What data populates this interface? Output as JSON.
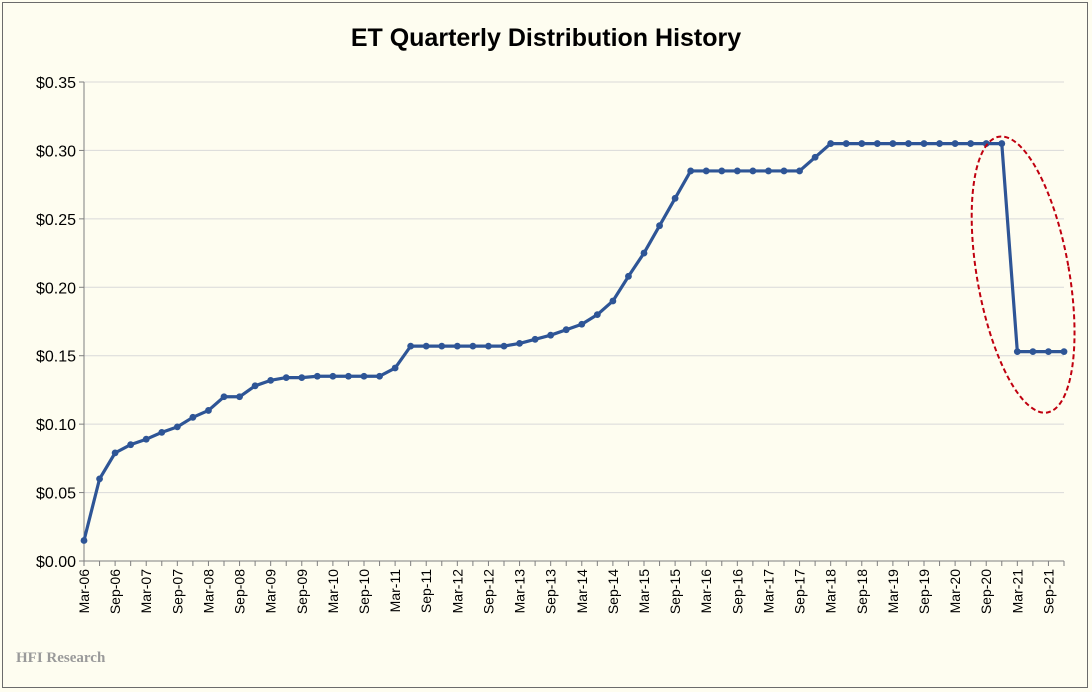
{
  "chart_data": {
    "type": "line",
    "title": "ET Quarterly Distribution History",
    "xlabel": "",
    "ylabel": "",
    "ylim": [
      0,
      0.35
    ],
    "yticks": [
      "$0.00",
      "$0.05",
      "$0.10",
      "$0.15",
      "$0.20",
      "$0.25",
      "$0.30",
      "$0.35"
    ],
    "grid": "horizontal",
    "x_tick_labels": [
      "Mar-06",
      "Sep-06",
      "Mar-07",
      "Sep-07",
      "Mar-08",
      "Sep-08",
      "Mar-09",
      "Sep-09",
      "Mar-10",
      "Sep-10",
      "Mar-11",
      "Sep-11",
      "Mar-12",
      "Sep-12",
      "Mar-13",
      "Sep-13",
      "Mar-14",
      "Sep-14",
      "Mar-15",
      "Sep-15",
      "Mar-16",
      "Sep-16",
      "Mar-17",
      "Sep-17",
      "Mar-18",
      "Sep-18",
      "Mar-19",
      "Sep-19",
      "Mar-20",
      "Sep-20",
      "Mar-21",
      "Sep-21"
    ],
    "x": [
      "Mar-06",
      "Jun-06",
      "Sep-06",
      "Dec-06",
      "Mar-07",
      "Jun-07",
      "Sep-07",
      "Dec-07",
      "Mar-08",
      "Jun-08",
      "Sep-08",
      "Dec-08",
      "Mar-09",
      "Jun-09",
      "Sep-09",
      "Dec-09",
      "Mar-10",
      "Jun-10",
      "Sep-10",
      "Dec-10",
      "Mar-11",
      "Jun-11",
      "Sep-11",
      "Dec-11",
      "Mar-12",
      "Jun-12",
      "Sep-12",
      "Dec-12",
      "Mar-13",
      "Jun-13",
      "Sep-13",
      "Dec-13",
      "Mar-14",
      "Jun-14",
      "Sep-14",
      "Dec-14",
      "Mar-15",
      "Jun-15",
      "Sep-15",
      "Dec-15",
      "Mar-16",
      "Jun-16",
      "Sep-16",
      "Dec-16",
      "Mar-17",
      "Jun-17",
      "Sep-17",
      "Dec-17",
      "Mar-18",
      "Jun-18",
      "Sep-18",
      "Dec-18",
      "Mar-19",
      "Jun-19",
      "Sep-19",
      "Dec-19",
      "Mar-20",
      "Jun-20",
      "Sep-20",
      "Dec-20",
      "Mar-21",
      "Jun-21",
      "Sep-21",
      "Dec-21"
    ],
    "series": [
      {
        "values": [
          0.015,
          0.06,
          0.079,
          0.085,
          0.089,
          0.094,
          0.098,
          0.105,
          0.11,
          0.12,
          0.12,
          0.128,
          0.132,
          0.134,
          0.134,
          0.135,
          0.135,
          0.135,
          0.135,
          0.135,
          0.141,
          0.157,
          0.157,
          0.157,
          0.157,
          0.157,
          0.157,
          0.157,
          0.159,
          0.162,
          0.165,
          0.169,
          0.173,
          0.18,
          0.19,
          0.208,
          0.225,
          0.245,
          0.265,
          0.285,
          0.285,
          0.285,
          0.285,
          0.285,
          0.285,
          0.285,
          0.285,
          0.295,
          0.305,
          0.305,
          0.305,
          0.305,
          0.305,
          0.305,
          0.305,
          0.305,
          0.305,
          0.305,
          0.305,
          0.305,
          0.153,
          0.153,
          0.153,
          0.153
        ]
      }
    ],
    "line_color": "#2e5596",
    "annotation": {
      "shape": "dashed-ellipse",
      "color": "#c0000f",
      "target": "Sep-20 to Sep-21 distribution cut"
    }
  },
  "watermark": "HFI Research",
  "colors": {
    "background": "#fefdf0",
    "grid": "#d9d9d9",
    "axis": "#7f7f7f"
  }
}
